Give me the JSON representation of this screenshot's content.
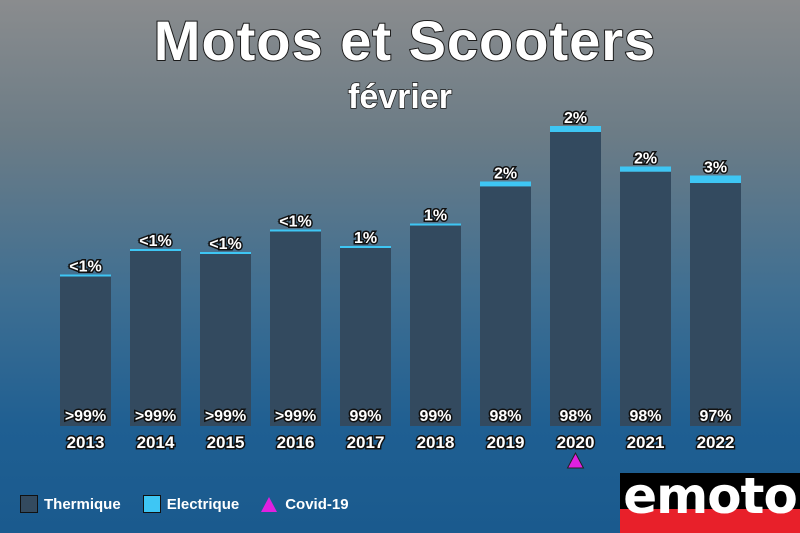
{
  "chart_data": {
    "type": "bar",
    "title": "Motos et Scooters",
    "subtitle": "février",
    "categories": [
      "2013",
      "2014",
      "2015",
      "2016",
      "2017",
      "2018",
      "2019",
      "2020",
      "2021",
      "2022"
    ],
    "series": [
      {
        "name": "Thermique",
        "values": [
          99.5,
          99.5,
          99.5,
          99.5,
          99,
          99,
          98,
          98,
          98,
          97
        ],
        "labels": [
          ">99%",
          ">99%",
          ">99%",
          ">99%",
          "99%",
          "99%",
          "98%",
          "98%",
          "98%",
          "97%"
        ],
        "color": "#334a5f"
      },
      {
        "name": "Electrique",
        "values": [
          0.5,
          0.5,
          0.5,
          0.5,
          1,
          1,
          2,
          2,
          2,
          3
        ],
        "labels": [
          "<1%",
          "<1%",
          "<1%",
          "<1%",
          "1%",
          "1%",
          "2%",
          "2%",
          "2%",
          "3%"
        ],
        "color": "#3ec6f4"
      }
    ],
    "totals_relative": [
      0.505,
      0.59,
      0.58,
      0.655,
      0.6,
      0.675,
      0.815,
      1.0,
      0.865,
      0.835
    ],
    "annotations": [
      {
        "category": "2020",
        "marker": "triangle",
        "label": "Covid-19",
        "color": "#e020e0"
      }
    ],
    "legend": {
      "position": "bottom-left",
      "items": [
        "Thermique",
        "Electrique",
        "Covid-19"
      ]
    },
    "grid": false
  },
  "logo": {
    "text": "emoto"
  }
}
